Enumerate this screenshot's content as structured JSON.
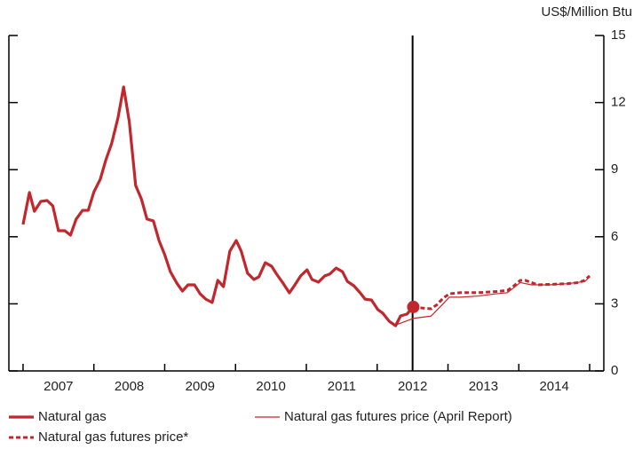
{
  "chart_data": {
    "type": "line",
    "y_axis_label": "US$/Million Btu",
    "xlim": [
      2006.8,
      2015.2
    ],
    "ylim": [
      0,
      15
    ],
    "yticks": [
      0,
      3,
      6,
      9,
      12,
      15
    ],
    "xticks": [
      {
        "value": 2007.5,
        "label": "2007"
      },
      {
        "value": 2008.5,
        "label": "2008"
      },
      {
        "value": 2009.5,
        "label": "2009"
      },
      {
        "value": 2010.5,
        "label": "2010"
      },
      {
        "value": 2011.5,
        "label": "2011"
      },
      {
        "value": 2012.5,
        "label": "2012"
      },
      {
        "value": 2013.5,
        "label": "2013"
      },
      {
        "value": 2014.5,
        "label": "2014"
      }
    ],
    "minor_xticks": [
      2007,
      2008,
      2009,
      2010,
      2011,
      2012,
      2013,
      2014,
      2015
    ],
    "vline": 2012.5,
    "series": [
      {
        "name": "Natural gas",
        "color": "#c1272d",
        "style": "solid",
        "end_marker": true,
        "x": [
          2007.0,
          2007.09,
          2007.16,
          2007.25,
          2007.34,
          2007.42,
          2007.5,
          2007.59,
          2007.67,
          2007.75,
          2007.84,
          2007.92,
          2008.0,
          2008.09,
          2008.17,
          2008.25,
          2008.34,
          2008.42,
          2008.5,
          2008.59,
          2008.67,
          2008.75,
          2008.84,
          2008.92,
          2009.0,
          2009.08,
          2009.17,
          2009.25,
          2009.33,
          2009.42,
          2009.5,
          2009.58,
          2009.67,
          2009.75,
          2009.83,
          2009.92,
          2010.01,
          2010.08,
          2010.17,
          2010.26,
          2010.33,
          2010.42,
          2010.51,
          2010.58,
          2010.67,
          2010.76,
          2010.83,
          2010.92,
          2011.01,
          2011.08,
          2011.17,
          2011.26,
          2011.33,
          2011.42,
          2011.51,
          2011.58,
          2011.67,
          2011.76,
          2011.83,
          2011.92,
          2012.01,
          2012.08,
          2012.17,
          2012.26,
          2012.33,
          2012.42,
          2012.51
        ],
        "values": [
          6.55,
          7.98,
          7.14,
          7.58,
          7.62,
          7.38,
          6.27,
          6.27,
          6.07,
          6.79,
          7.18,
          7.18,
          8.0,
          8.57,
          9.44,
          10.16,
          11.31,
          12.7,
          11.15,
          8.29,
          7.7,
          6.79,
          6.71,
          5.83,
          5.2,
          4.44,
          3.93,
          3.57,
          3.85,
          3.85,
          3.45,
          3.21,
          3.06,
          4.05,
          3.77,
          5.36,
          5.83,
          5.36,
          4.37,
          4.09,
          4.21,
          4.84,
          4.68,
          4.33,
          3.93,
          3.49,
          3.81,
          4.25,
          4.52,
          4.09,
          3.97,
          4.25,
          4.33,
          4.6,
          4.44,
          4.0,
          3.81,
          3.49,
          3.21,
          3.17,
          2.74,
          2.58,
          2.22,
          2.02,
          2.46,
          2.54,
          2.86
        ]
      },
      {
        "name": "Natural gas futures price (April Report)",
        "color": "#c1272d",
        "style": "thin",
        "x": [
          2012.26,
          2012.51,
          2012.76,
          2012.93,
          2013.02,
          2013.18,
          2013.43,
          2013.68,
          2013.84,
          2014.02,
          2014.18,
          2014.43,
          2014.68,
          2014.93,
          2015.0
        ],
        "values": [
          2.05,
          2.35,
          2.45,
          3.0,
          3.3,
          3.3,
          3.35,
          3.45,
          3.5,
          3.95,
          3.85,
          3.85,
          3.9,
          4.0,
          4.2
        ]
      },
      {
        "name": "Natural gas futures price*",
        "color": "#c1272d",
        "style": "dashed",
        "x": [
          2012.51,
          2012.61,
          2012.76,
          2012.84,
          2012.93,
          2013.02,
          2013.18,
          2013.43,
          2013.68,
          2013.84,
          2013.93,
          2014.02,
          2014.09,
          2014.18,
          2014.27,
          2014.43,
          2014.68,
          2014.84,
          2014.93,
          2015.0
        ],
        "values": [
          2.86,
          2.82,
          2.78,
          2.95,
          3.25,
          3.45,
          3.5,
          3.5,
          3.55,
          3.6,
          3.8,
          4.05,
          4.05,
          3.95,
          3.85,
          3.87,
          3.9,
          3.95,
          4.05,
          4.25
        ]
      }
    ]
  }
}
